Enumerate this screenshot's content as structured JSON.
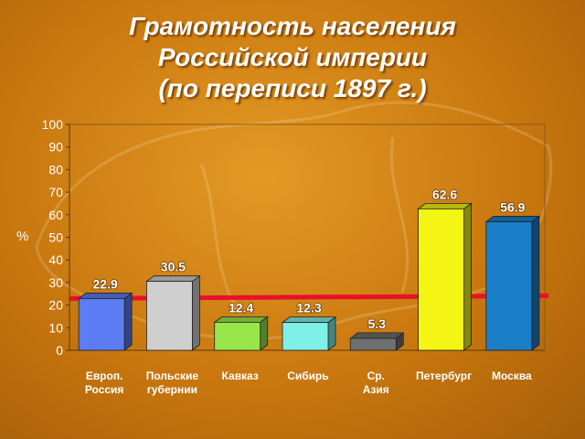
{
  "title_lines": [
    "Грамотность населения",
    "Российской империи",
    "(по переписи 1897 г.)"
  ],
  "chart_data": {
    "type": "bar",
    "title": "Грамотность населения Российской империи (по переписи 1897 г.)",
    "ylabel": "%",
    "ylim": [
      0,
      100
    ],
    "yticks": [
      0,
      10,
      20,
      30,
      40,
      50,
      60,
      70,
      80,
      90,
      100
    ],
    "categories": [
      [
        "Европ.",
        "Россия"
      ],
      [
        "Польские",
        "губернии"
      ],
      [
        "Кавказ"
      ],
      [
        "Сибирь"
      ],
      [
        "Ср.",
        "Азия"
      ],
      [
        "Петербург"
      ],
      [
        "Москва"
      ]
    ],
    "values": [
      22.9,
      30.5,
      12.4,
      12.3,
      5.3,
      62.6,
      56.9
    ],
    "value_labels": [
      "22.9",
      "30.5",
      "12.4",
      "12.3",
      "5.3",
      "62.6",
      "56.9"
    ],
    "bar_colors": [
      "#5b7cf2",
      "#cfcfcf",
      "#99e64a",
      "#7ff0e6",
      "#6f6f6f",
      "#f5f514",
      "#1a7fc8"
    ],
    "reference_line": {
      "value": 22.9,
      "color": "#e8102a"
    },
    "grid": false,
    "legend": "none"
  }
}
